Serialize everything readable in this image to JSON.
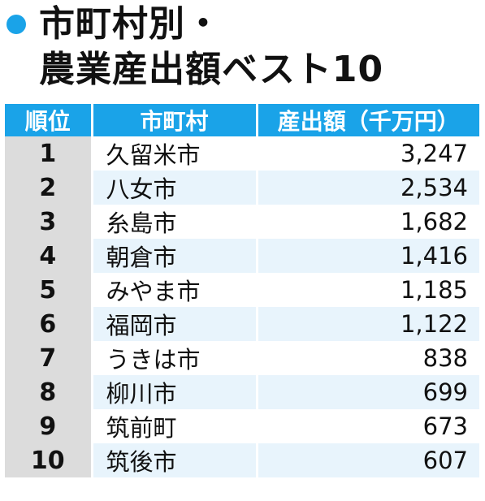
{
  "title": {
    "line1": "市町村別・",
    "line2": "農業産出額ベスト10"
  },
  "colors": {
    "accent": "#1aa3e8",
    "rank_bg": "#dcdcdc",
    "row_alt": "#e8f4fc"
  },
  "chart_data": {
    "type": "table",
    "columns": [
      "順位",
      "市町村",
      "産出額（千万円）"
    ],
    "rows": [
      {
        "rank": "1",
        "city": "久留米市",
        "value": "3,247"
      },
      {
        "rank": "2",
        "city": "八女市",
        "value": "2,534"
      },
      {
        "rank": "3",
        "city": "糸島市",
        "value": "1,682"
      },
      {
        "rank": "4",
        "city": "朝倉市",
        "value": "1,416"
      },
      {
        "rank": "5",
        "city": "みやま市",
        "value": "1,185"
      },
      {
        "rank": "6",
        "city": "福岡市",
        "value": "1,122"
      },
      {
        "rank": "7",
        "city": "うきは市",
        "value": "838"
      },
      {
        "rank": "8",
        "city": "柳川市",
        "value": "699"
      },
      {
        "rank": "9",
        "city": "筑前町",
        "value": "673"
      },
      {
        "rank": "10",
        "city": "筑後市",
        "value": "607"
      }
    ]
  }
}
